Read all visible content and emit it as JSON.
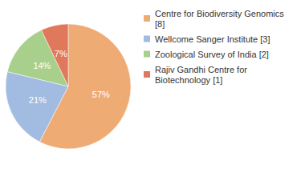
{
  "chart_data": {
    "type": "pie",
    "categories": [
      "Centre for Biodiversity Genomics [8]",
      "Wellcome Sanger Institute [3]",
      "Zoological Survey of India [2]",
      "Rajiv Gandhi Centre for Biotechnology [1]"
    ],
    "values": [
      57,
      21,
      14,
      7
    ],
    "value_labels": [
      "57%",
      "21%",
      "14%",
      "7%"
    ],
    "colors": [
      "#efab74",
      "#a2bbe0",
      "#a8cf8c",
      "#e0785c"
    ],
    "data_labels": true,
    "legend": "right"
  }
}
